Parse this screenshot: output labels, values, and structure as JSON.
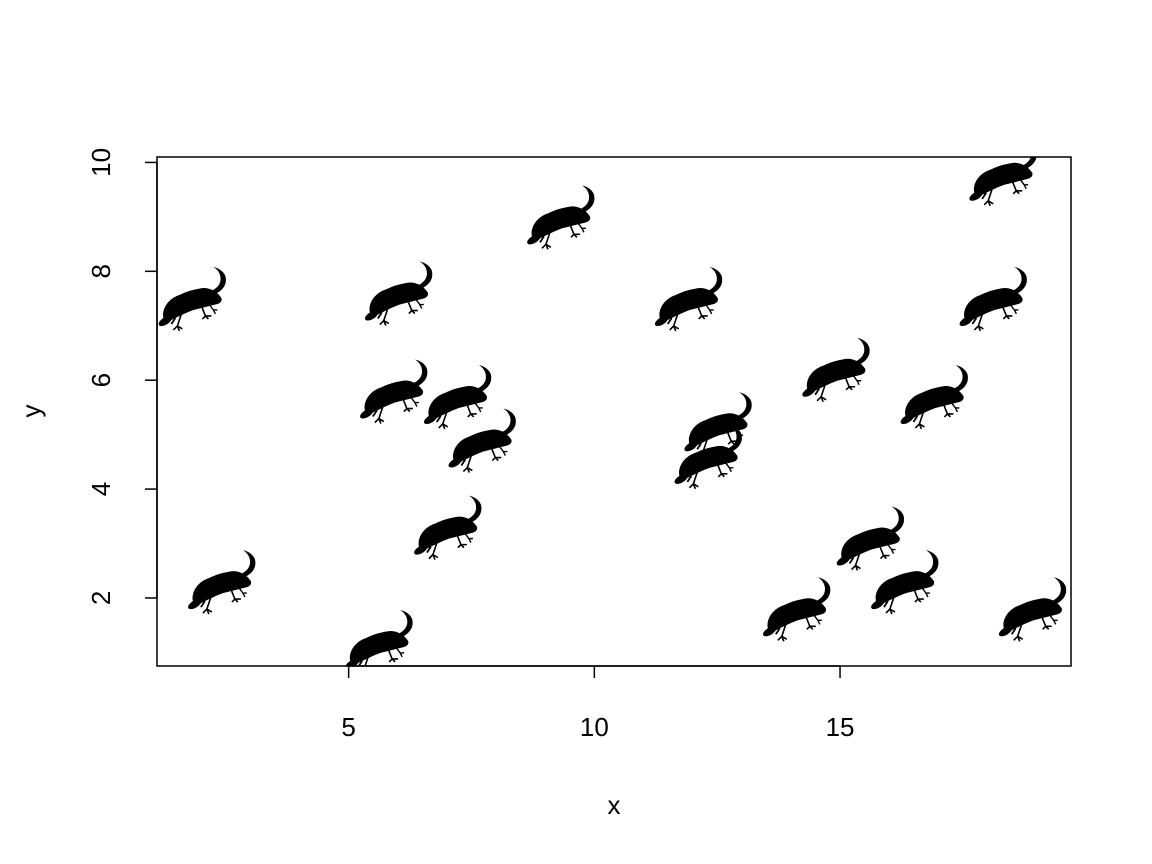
{
  "chart_data": {
    "type": "scatter",
    "title": "",
    "xlabel": "x",
    "ylabel": "y",
    "xlim": [
      1.1,
      19.7
    ],
    "ylim": [
      0.75,
      10.1
    ],
    "x_ticks": [
      5,
      10,
      15
    ],
    "y_ticks": [
      2,
      4,
      6,
      8,
      10
    ],
    "x_tick_labels": [
      "5",
      "10",
      "15"
    ],
    "y_tick_labels": [
      "2",
      "4",
      "6",
      "8",
      "10"
    ],
    "grid": false,
    "legend": "none",
    "marker": "lizard-silhouette",
    "marker_color": "#000000",
    "points": [
      {
        "x": 1.8,
        "y": 7.4
      },
      {
        "x": 2.4,
        "y": 2.2
      },
      {
        "x": 6.0,
        "y": 7.5
      },
      {
        "x": 9.3,
        "y": 8.9
      },
      {
        "x": 5.9,
        "y": 5.7
      },
      {
        "x": 7.2,
        "y": 5.6
      },
      {
        "x": 7.7,
        "y": 4.8
      },
      {
        "x": 7.0,
        "y": 3.2
      },
      {
        "x": 5.6,
        "y": 1.1
      },
      {
        "x": 12.5,
        "y": 5.1
      },
      {
        "x": 12.3,
        "y": 4.5
      },
      {
        "x": 11.9,
        "y": 7.4
      },
      {
        "x": 14.9,
        "y": 6.1
      },
      {
        "x": 16.9,
        "y": 5.6
      },
      {
        "x": 18.1,
        "y": 7.4
      },
      {
        "x": 18.3,
        "y": 9.7
      },
      {
        "x": 15.6,
        "y": 3.0
      },
      {
        "x": 16.3,
        "y": 2.2
      },
      {
        "x": 14.1,
        "y": 1.7
      },
      {
        "x": 18.9,
        "y": 1.7
      }
    ]
  }
}
